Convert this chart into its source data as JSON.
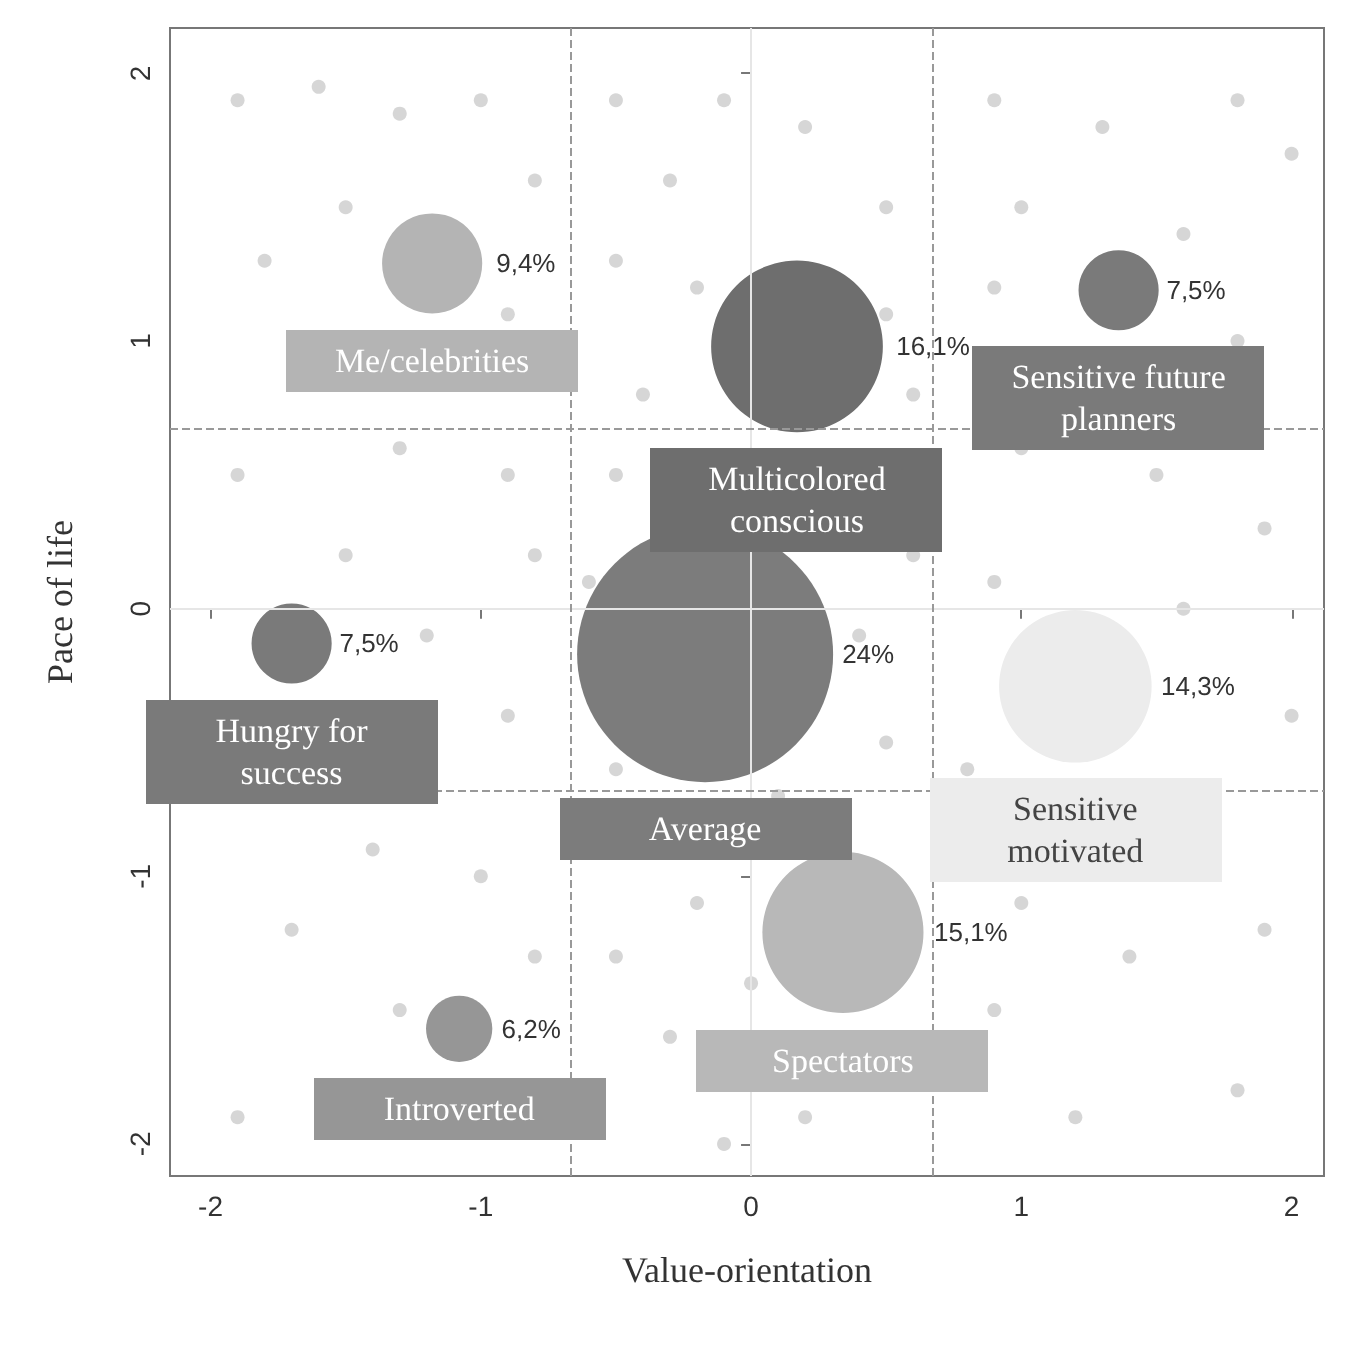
{
  "chart_data": {
    "type": "bubble",
    "xlabel": "Value-orientation",
    "ylabel": "Pace of life",
    "xlim": [
      -2.15,
      2.12
    ],
    "ylim": [
      -2.12,
      2.17
    ],
    "xticks": [
      -2,
      -1,
      0,
      1,
      2
    ],
    "yticks": [
      -2,
      -1,
      0,
      1,
      2
    ],
    "grid": false,
    "legend": false,
    "marker": "circle",
    "ref_lines": [
      {
        "axis": "x",
        "value": 0,
        "color": "#e6e6e6",
        "line_style": "solid"
      },
      {
        "axis": "y",
        "value": 0,
        "color": "#e6e6e6",
        "line_style": "solid"
      },
      {
        "axis": "x",
        "value": -0.67,
        "color": "#999999",
        "line_style": "dashed"
      },
      {
        "axis": "x",
        "value": 0.67,
        "color": "#999999",
        "line_style": "dashed"
      },
      {
        "axis": "y",
        "value": 0.67,
        "color": "#999999",
        "line_style": "dashed"
      },
      {
        "axis": "y",
        "value": -0.68,
        "color": "#999999",
        "line_style": "dashed"
      }
    ],
    "series": [
      {
        "type": "scatter",
        "color": "#cccccc",
        "x": [
          -1.9,
          -1.6,
          -1.3,
          -1.0,
          -0.8,
          -1.5,
          -1.8,
          -0.9,
          -1.3,
          -1.9,
          -0.9,
          -1.5,
          -0.8,
          -1.2,
          -0.9,
          -1.4,
          -1.0,
          -0.8,
          -1.7,
          -1.9,
          -1.3,
          -0.5,
          -0.3,
          -0.1,
          0.2,
          0.5,
          -0.5,
          -0.2,
          0.5,
          -0.4,
          0.6,
          -0.5,
          0.6,
          -0.6,
          0.4,
          0.5,
          -0.5,
          0.1,
          -0.2,
          0.0,
          -0.5,
          -0.3,
          0.2,
          -0.1,
          0.9,
          1.3,
          1.8,
          1.0,
          1.6,
          2.0,
          0.9,
          1.8,
          1.0,
          1.5,
          1.9,
          0.9,
          1.6,
          2.0,
          0.8,
          1.0,
          1.4,
          1.9,
          0.9,
          1.2,
          1.8
        ],
        "values": [
          1.9,
          1.95,
          1.85,
          1.9,
          1.6,
          1.5,
          1.3,
          1.1,
          0.6,
          0.5,
          0.5,
          0.2,
          0.2,
          -0.1,
          -0.4,
          -0.9,
          -1.0,
          -1.3,
          -1.2,
          -1.9,
          -1.5,
          1.9,
          1.6,
          1.9,
          1.8,
          1.5,
          1.3,
          1.2,
          1.1,
          0.8,
          0.8,
          0.5,
          0.2,
          0.1,
          -0.1,
          -0.5,
          -0.6,
          -0.7,
          -1.1,
          -1.4,
          -1.3,
          -1.6,
          -1.9,
          -2.0,
          1.9,
          1.8,
          1.9,
          1.5,
          1.4,
          1.7,
          1.2,
          1.0,
          0.6,
          0.5,
          0.3,
          0.1,
          0.0,
          -0.4,
          -0.6,
          -1.1,
          -1.3,
          -1.2,
          -1.5,
          -1.9,
          -1.8
        ]
      },
      {
        "name": "Me/celebrities",
        "color": "#b4b4b4",
        "x": [
          -1.18
        ],
        "values": [
          1.29
        ],
        "sizes": [
          0.153
        ]
      },
      {
        "name": "Multicolored conscious",
        "color": "#6e6e6e",
        "x": [
          0.17
        ],
        "values": [
          0.98
        ],
        "sizes": [
          0.45
        ]
      },
      {
        "name": "Sensitive future planners",
        "color": "#7a7a7a",
        "x": [
          1.36
        ],
        "values": [
          1.19
        ],
        "sizes": [
          0.098
        ]
      },
      {
        "name": "Hungry for success",
        "color": "#7a7a7a",
        "x": [
          -1.7
        ],
        "values": [
          -0.13
        ],
        "sizes": [
          0.098
        ]
      },
      {
        "name": "Average",
        "color": "#7c7c7c",
        "x": [
          -0.17
        ],
        "values": [
          -0.17
        ],
        "sizes": [
          1
        ]
      },
      {
        "name": "Sensitive motivated",
        "color": "#ececec",
        "x": [
          1.2
        ],
        "values": [
          -0.29
        ],
        "sizes": [
          0.355
        ]
      },
      {
        "name": "Spectators",
        "color": "#b8b8b8",
        "x": [
          0.34
        ],
        "values": [
          -1.21
        ],
        "sizes": [
          0.396
        ]
      },
      {
        "name": "Introverted",
        "color": "#969696",
        "x": [
          -1.08
        ],
        "values": [
          -1.57
        ],
        "sizes": [
          0.067
        ]
      }
    ],
    "annotations": [
      {
        "text": "9,4%",
        "x": -0.98,
        "y": 1.29
      },
      {
        "text": "16,1%",
        "x": 0.5,
        "y": 0.98
      },
      {
        "text": "7,5%",
        "x": 1.5,
        "y": 1.19
      },
      {
        "text": "7,5%",
        "x": -1.56,
        "y": -0.13
      },
      {
        "text": "24%",
        "x": 0.3,
        "y": -0.17
      },
      {
        "text": "14,3%",
        "x": 1.48,
        "y": -0.29
      },
      {
        "text": "15,1%",
        "x": 0.64,
        "y": -1.21
      },
      {
        "text": "6,2%",
        "x": -0.96,
        "y": -1.57
      }
    ]
  }
}
